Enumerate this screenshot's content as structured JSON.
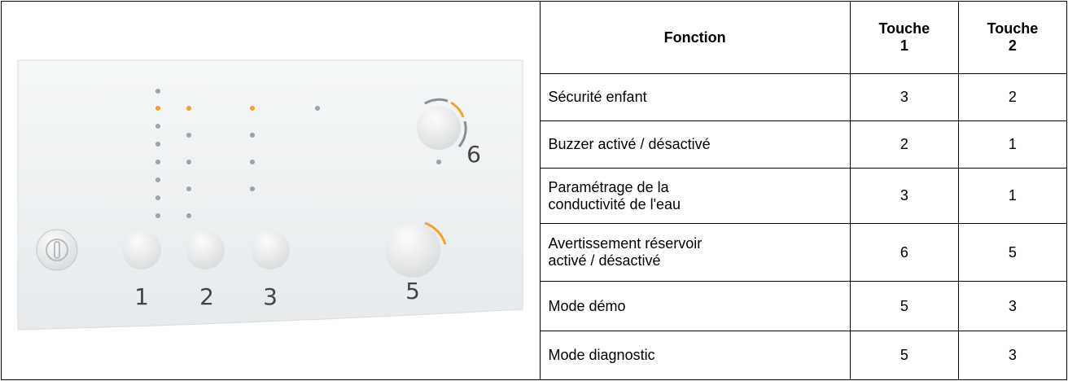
{
  "panel": {
    "labels": [
      "1",
      "2",
      "3",
      "5",
      "6"
    ]
  },
  "table": {
    "header": [
      "Fonction",
      "Touche 1",
      "Touche 2"
    ],
    "rows": [
      [
        "Sécurité enfant",
        "3",
        "2"
      ],
      [
        "Buzzer activé / désactivé",
        "2",
        "1"
      ],
      [
        "Paramétrage de la conductivité de l'eau",
        "3",
        "1"
      ],
      [
        "Avertissement réservoir activé / désactivé",
        "6",
        "5"
      ],
      [
        "Mode démo",
        "5",
        "3"
      ],
      [
        "Mode diagnostic",
        "5",
        "3"
      ]
    ]
  }
}
